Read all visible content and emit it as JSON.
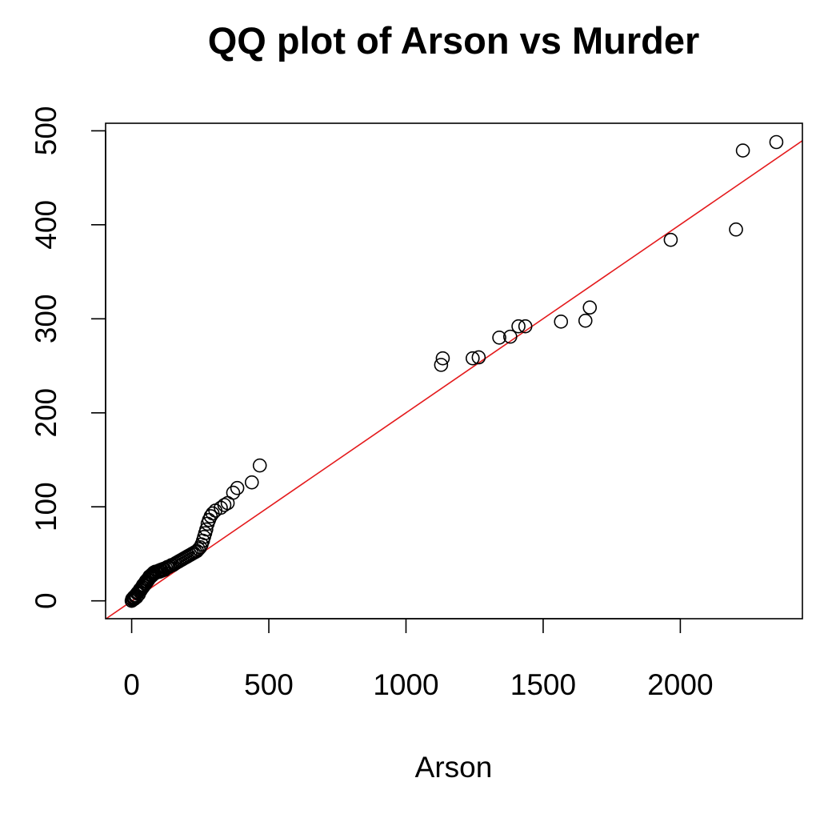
{
  "chart_data": {
    "type": "scatter",
    "title": "QQ plot of Arson vs Murder",
    "xlabel": "Arson",
    "ylabel": "",
    "xlim": [
      -95,
      2445
    ],
    "ylim": [
      -19,
      508
    ],
    "x_ticks": [
      0,
      500,
      1000,
      1500,
      2000
    ],
    "y_ticks": [
      0,
      100,
      200,
      300,
      400,
      500
    ],
    "x_tick_labels": [
      "0",
      "500",
      "1000",
      "1500",
      "2000"
    ],
    "y_tick_labels": [
      "0",
      "100",
      "200",
      "300",
      "400",
      "500"
    ],
    "grid": false,
    "marker": "open-circle",
    "point_color": "#000000",
    "points": [
      {
        "x": 0,
        "y": 0
      },
      {
        "x": 2,
        "y": 2
      },
      {
        "x": 4,
        "y": 1
      },
      {
        "x": 6,
        "y": 3
      },
      {
        "x": 8,
        "y": 4
      },
      {
        "x": 10,
        "y": 2
      },
      {
        "x": 12,
        "y": 5
      },
      {
        "x": 15,
        "y": 6
      },
      {
        "x": 18,
        "y": 4
      },
      {
        "x": 20,
        "y": 8
      },
      {
        "x": 23,
        "y": 9
      },
      {
        "x": 26,
        "y": 7
      },
      {
        "x": 28,
        "y": 10
      },
      {
        "x": 30,
        "y": 12
      },
      {
        "x": 33,
        "y": 11
      },
      {
        "x": 35,
        "y": 13
      },
      {
        "x": 38,
        "y": 15
      },
      {
        "x": 40,
        "y": 14
      },
      {
        "x": 42,
        "y": 17
      },
      {
        "x": 45,
        "y": 16
      },
      {
        "x": 48,
        "y": 19
      },
      {
        "x": 50,
        "y": 18
      },
      {
        "x": 52,
        "y": 21
      },
      {
        "x": 55,
        "y": 20
      },
      {
        "x": 58,
        "y": 23
      },
      {
        "x": 60,
        "y": 22
      },
      {
        "x": 63,
        "y": 24
      },
      {
        "x": 65,
        "y": 26
      },
      {
        "x": 68,
        "y": 25
      },
      {
        "x": 70,
        "y": 27
      },
      {
        "x": 73,
        "y": 28
      },
      {
        "x": 75,
        "y": 27
      },
      {
        "x": 78,
        "y": 29
      },
      {
        "x": 80,
        "y": 30
      },
      {
        "x": 83,
        "y": 29
      },
      {
        "x": 86,
        "y": 31
      },
      {
        "x": 90,
        "y": 30
      },
      {
        "x": 94,
        "y": 31
      },
      {
        "x": 98,
        "y": 32
      },
      {
        "x": 102,
        "y": 31
      },
      {
        "x": 106,
        "y": 33
      },
      {
        "x": 110,
        "y": 32
      },
      {
        "x": 115,
        "y": 34
      },
      {
        "x": 120,
        "y": 33
      },
      {
        "x": 125,
        "y": 35
      },
      {
        "x": 130,
        "y": 36
      },
      {
        "x": 135,
        "y": 36
      },
      {
        "x": 140,
        "y": 37
      },
      {
        "x": 145,
        "y": 38
      },
      {
        "x": 150,
        "y": 38
      },
      {
        "x": 155,
        "y": 39
      },
      {
        "x": 160,
        "y": 40
      },
      {
        "x": 166,
        "y": 41
      },
      {
        "x": 172,
        "y": 42
      },
      {
        "x": 178,
        "y": 43
      },
      {
        "x": 184,
        "y": 44
      },
      {
        "x": 190,
        "y": 45
      },
      {
        "x": 196,
        "y": 46
      },
      {
        "x": 202,
        "y": 47
      },
      {
        "x": 208,
        "y": 48
      },
      {
        "x": 214,
        "y": 49
      },
      {
        "x": 220,
        "y": 50
      },
      {
        "x": 226,
        "y": 51
      },
      {
        "x": 232,
        "y": 52
      },
      {
        "x": 238,
        "y": 53
      },
      {
        "x": 244,
        "y": 55
      },
      {
        "x": 250,
        "y": 57
      },
      {
        "x": 255,
        "y": 60
      },
      {
        "x": 260,
        "y": 64
      },
      {
        "x": 264,
        "y": 68
      },
      {
        "x": 268,
        "y": 72
      },
      {
        "x": 272,
        "y": 76
      },
      {
        "x": 277,
        "y": 82
      },
      {
        "x": 282,
        "y": 86
      },
      {
        "x": 288,
        "y": 90
      },
      {
        "x": 295,
        "y": 93
      },
      {
        "x": 305,
        "y": 96
      },
      {
        "x": 325,
        "y": 99
      },
      {
        "x": 338,
        "y": 102
      },
      {
        "x": 350,
        "y": 104
      },
      {
        "x": 370,
        "y": 115
      },
      {
        "x": 385,
        "y": 120
      },
      {
        "x": 438,
        "y": 126
      },
      {
        "x": 467,
        "y": 144
      },
      {
        "x": 1128,
        "y": 251
      },
      {
        "x": 1134,
        "y": 258
      },
      {
        "x": 1243,
        "y": 258
      },
      {
        "x": 1265,
        "y": 259
      },
      {
        "x": 1340,
        "y": 280
      },
      {
        "x": 1380,
        "y": 281
      },
      {
        "x": 1410,
        "y": 292
      },
      {
        "x": 1435,
        "y": 292
      },
      {
        "x": 1565,
        "y": 297
      },
      {
        "x": 1654,
        "y": 298
      },
      {
        "x": 1670,
        "y": 312
      },
      {
        "x": 1965,
        "y": 384
      },
      {
        "x": 2203,
        "y": 395
      },
      {
        "x": 2228,
        "y": 479
      },
      {
        "x": 2350,
        "y": 488
      }
    ],
    "reference_line": {
      "intercept": -0.32,
      "slope": 0.2003,
      "color": "#e41a1c"
    }
  }
}
